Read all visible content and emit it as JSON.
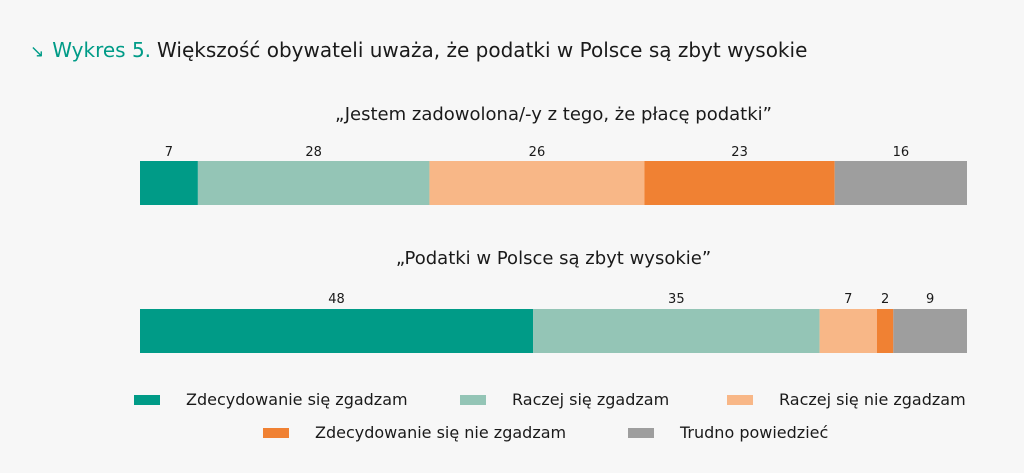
{
  "header": {
    "arrow_glyph": "↘",
    "prefix": "Wykres 5.",
    "title": "Większość obywateli uważa, że podatki w Polsce są zbyt wysokie"
  },
  "chart_data": {
    "type": "bar",
    "orientation": "horizontal",
    "stacked": true,
    "categories": [
      "„Jestem zadowolona/-y z tego, że płacę podatki”",
      "„Podatki w Polsce są zbyt wysokie”"
    ],
    "series": [
      {
        "name": "Zdecydowanie się zgadzam",
        "color": "#009b87",
        "values": [
          7,
          48
        ]
      },
      {
        "name": "Raczej się zgadzam",
        "color": "#94c5b6",
        "values": [
          28,
          35
        ]
      },
      {
        "name": "Raczej się nie zgadzam",
        "color": "#f8b787",
        "values": [
          26,
          7
        ]
      },
      {
        "name": "Zdecydowanie się nie zgadzam",
        "color": "#f08133",
        "values": [
          23,
          2
        ]
      },
      {
        "name": "Trudno powiedzieć",
        "color": "#9e9e9e",
        "values": [
          16,
          9
        ]
      }
    ],
    "xlim": [
      0,
      100
    ],
    "grid": false,
    "legend_position": "bottom"
  }
}
